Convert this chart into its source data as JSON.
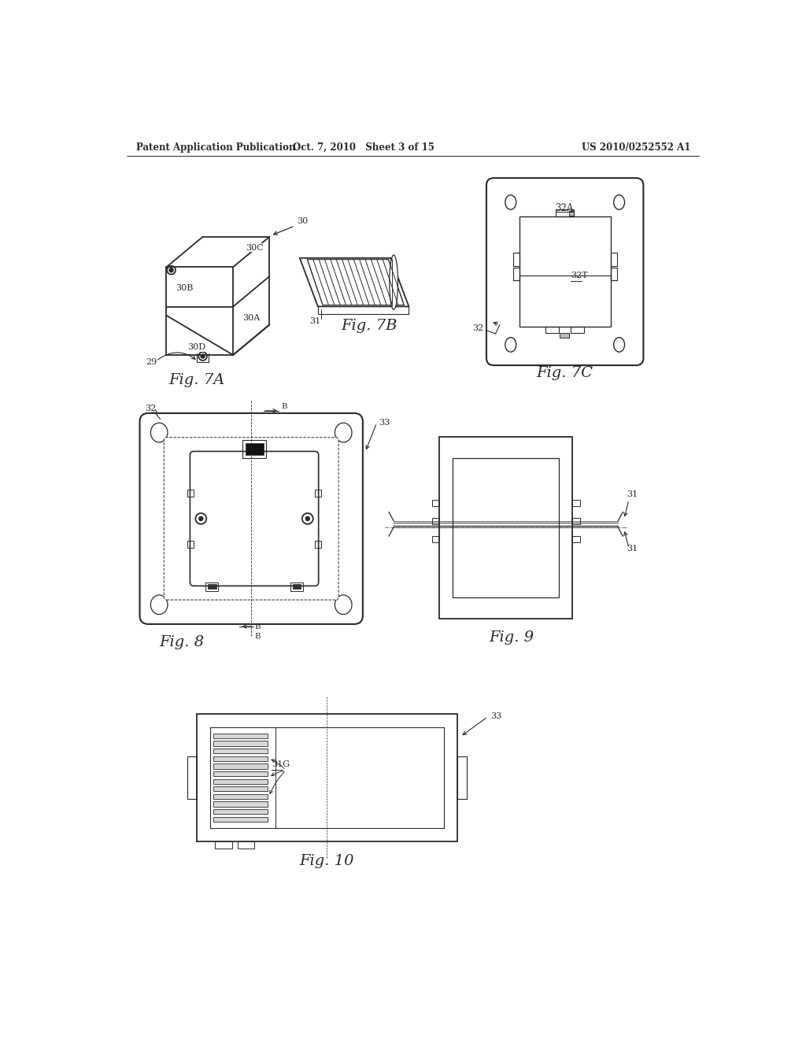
{
  "bg_color": "#ffffff",
  "line_color": "#2a2a2a",
  "header_left": "Patent Application Publication",
  "header_center": "Oct. 7, 2010   Sheet 3 of 15",
  "header_right": "US 2010/0252552 A1"
}
